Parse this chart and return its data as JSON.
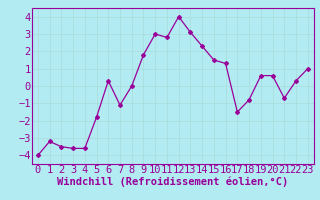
{
  "x": [
    0,
    1,
    2,
    3,
    4,
    5,
    6,
    7,
    8,
    9,
    10,
    11,
    12,
    13,
    14,
    15,
    16,
    17,
    18,
    19,
    20,
    21,
    22,
    23
  ],
  "y": [
    -4.0,
    -3.2,
    -3.5,
    -3.6,
    -3.6,
    -1.8,
    0.3,
    -1.1,
    0.0,
    1.8,
    3.0,
    2.8,
    4.0,
    3.1,
    2.3,
    1.5,
    1.3,
    -1.5,
    -0.8,
    0.6,
    0.6,
    -0.7,
    0.3,
    1.0
  ],
  "line_color": "#990099",
  "marker": "D",
  "marker_size": 2,
  "bg_color": "#b2ebf2",
  "grid_color": "#aadddd",
  "xlabel": "Windchill (Refroidissement éolien,°C)",
  "xlim": [
    -0.5,
    23.5
  ],
  "ylim": [
    -4.5,
    4.5
  ],
  "yticks": [
    -4,
    -3,
    -2,
    -1,
    0,
    1,
    2,
    3,
    4
  ],
  "xticks": [
    0,
    1,
    2,
    3,
    4,
    5,
    6,
    7,
    8,
    9,
    10,
    11,
    12,
    13,
    14,
    15,
    16,
    17,
    18,
    19,
    20,
    21,
    22,
    23
  ],
  "label_color": "#990099",
  "tick_label_color": "#990099",
  "xlabel_fontsize": 7.5,
  "tick_fontsize": 7.5,
  "spine_color": "#990099"
}
